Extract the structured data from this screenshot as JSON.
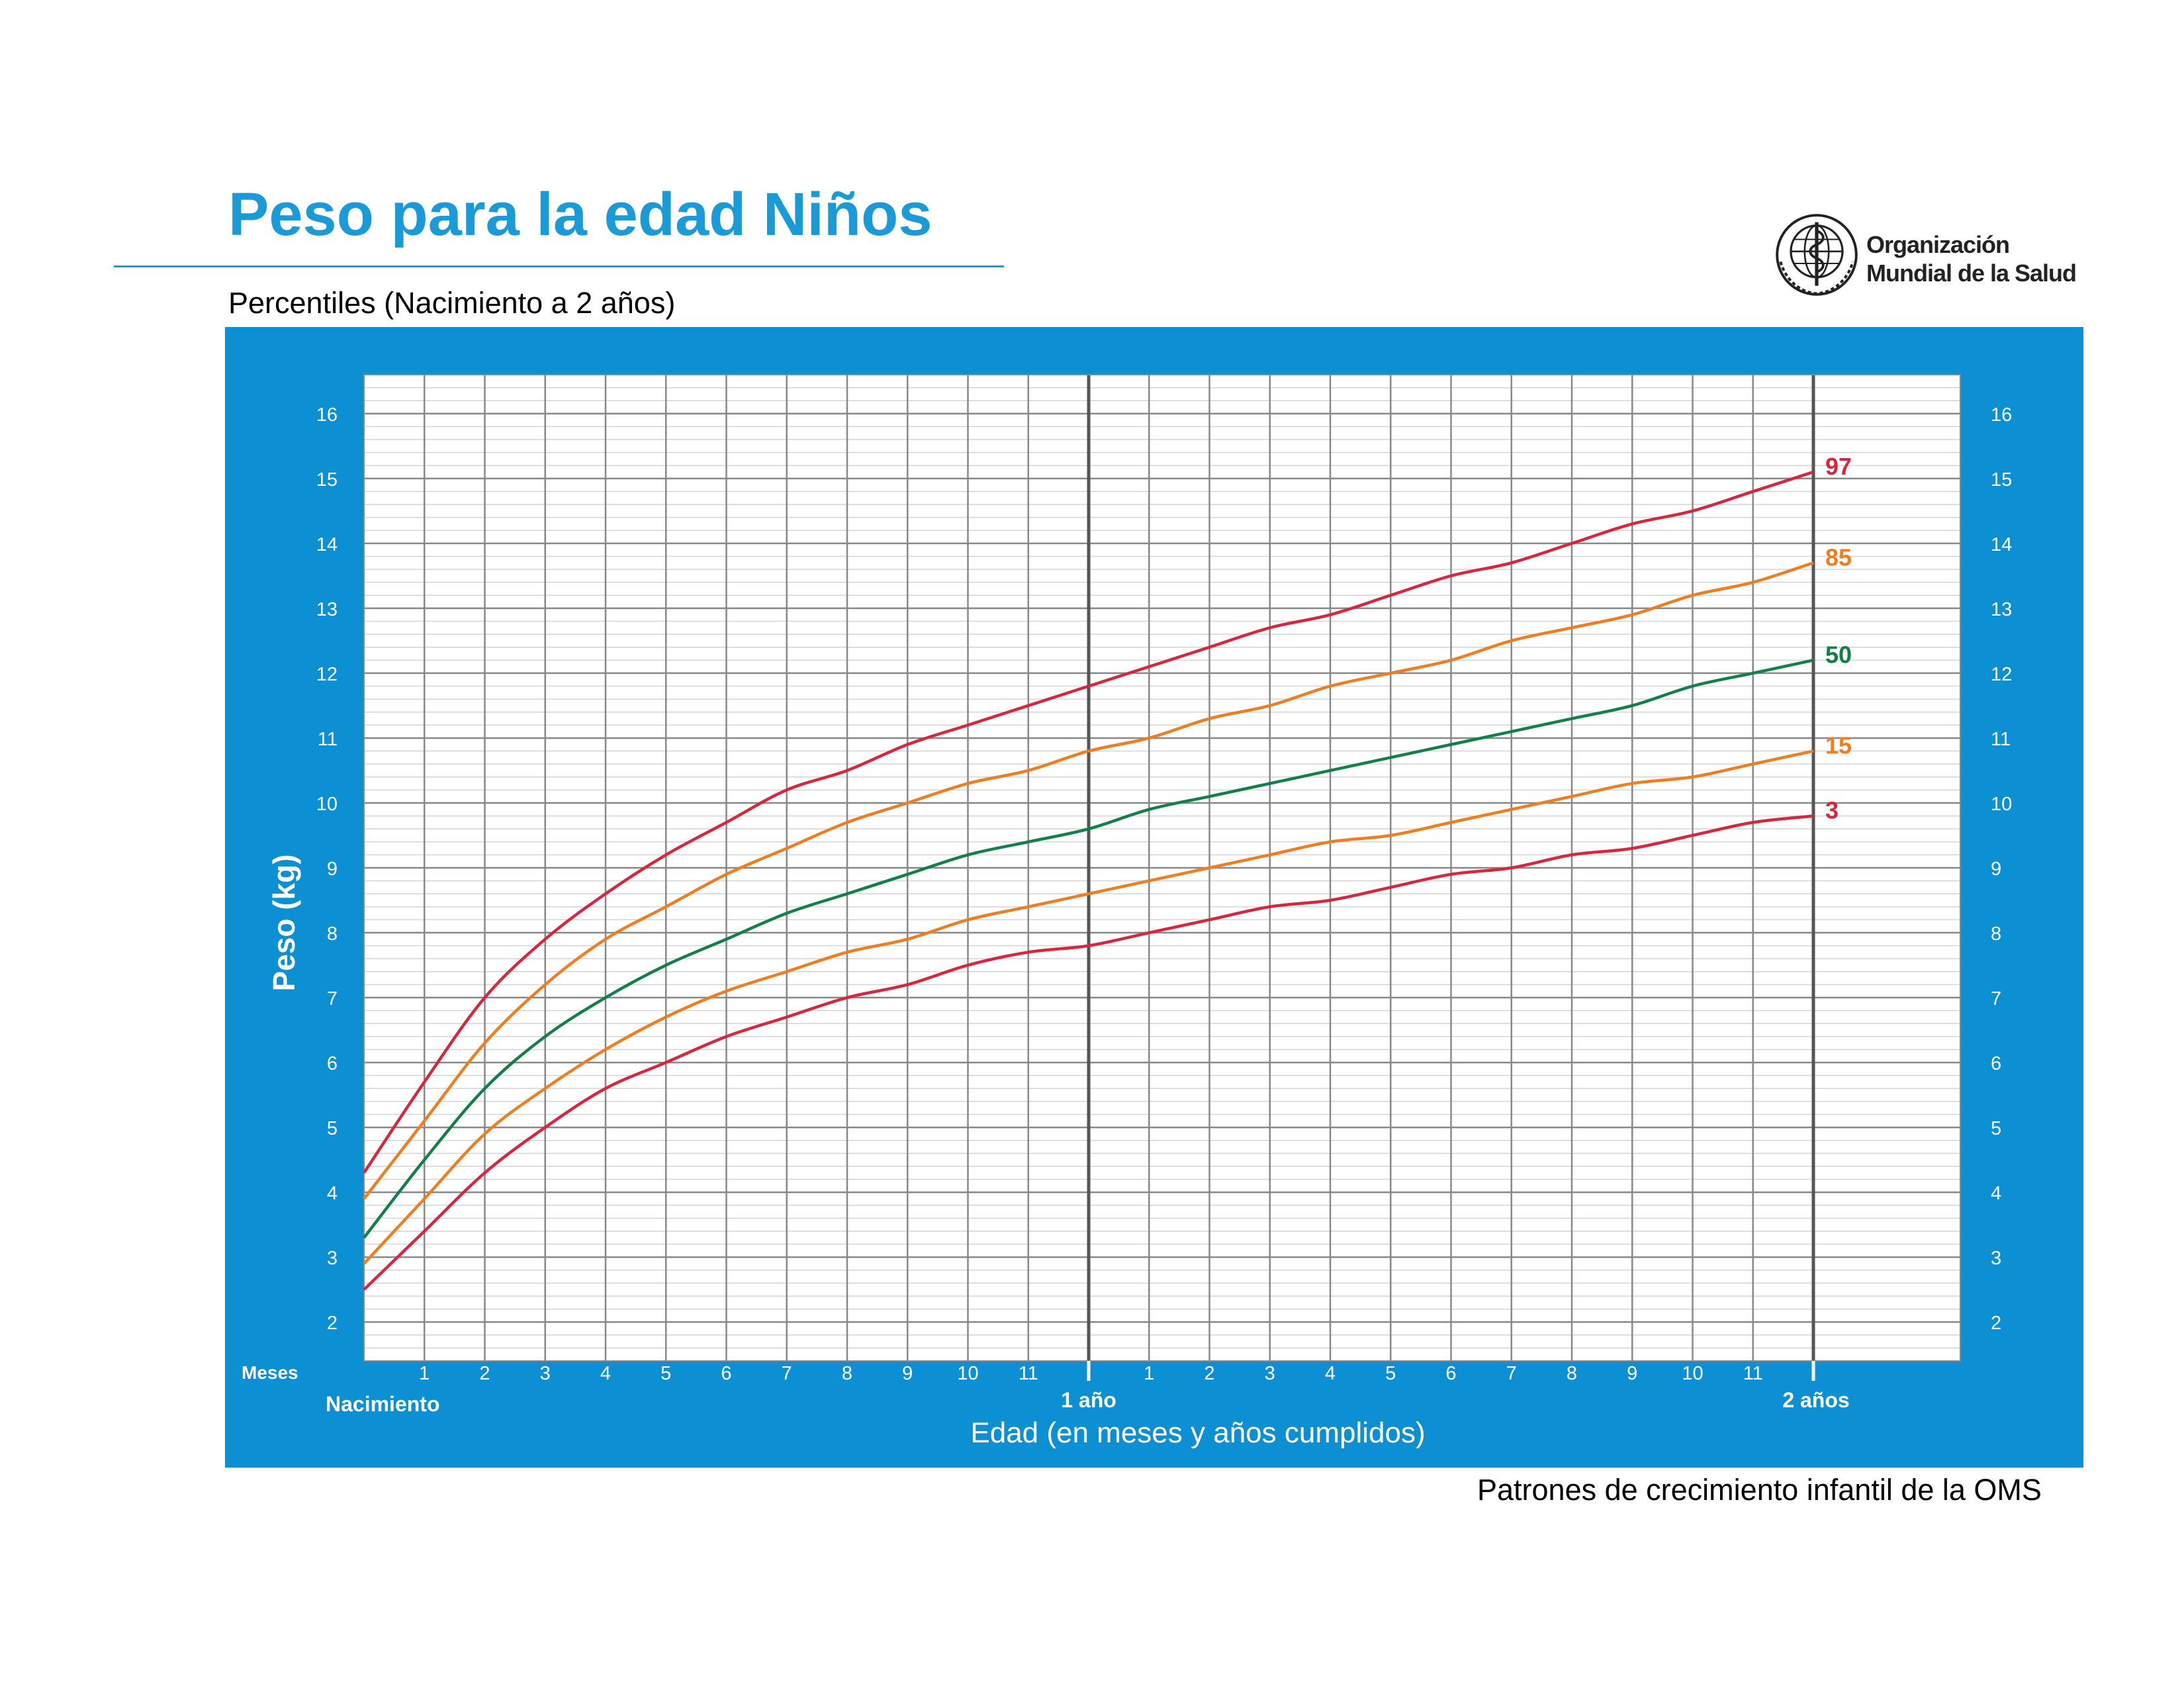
{
  "header": {
    "title": "Peso para la edad Niños",
    "subtitle": "Percentiles (Nacimiento a 2 años)"
  },
  "logo": {
    "icon": "who-emblem-icon",
    "line1": "Organización",
    "line2": "Mundial de la Salud"
  },
  "footer": {
    "source": "Patrones de crecimiento infantil de la OMS"
  },
  "colors": {
    "brand_blue": "#1a9ad6",
    "panel_blue": "#0d8fd4",
    "p97": "#d7263d",
    "p85": "#ef7d22",
    "p50": "#128048",
    "p15": "#ef7d22",
    "p3": "#d7263d"
  },
  "chart_data": {
    "type": "line",
    "ylabel": "Peso (kg)",
    "xlabel": "Edad (en meses y años cumplidos)",
    "x_axis": {
      "unit_label": "Meses",
      "range_months": [
        0,
        24
      ],
      "month_ticks_year1": [
        "1",
        "2",
        "3",
        "4",
        "5",
        "6",
        "7",
        "8",
        "9",
        "10",
        "11"
      ],
      "month_ticks_year2": [
        "1",
        "2",
        "3",
        "4",
        "5",
        "6",
        "7",
        "8",
        "9",
        "10",
        "11"
      ],
      "milestones": [
        {
          "month": 0,
          "label": "Nacimiento"
        },
        {
          "month": 12,
          "label": "1 año"
        },
        {
          "month": 24,
          "label": "2 años"
        }
      ]
    },
    "y_axis": {
      "range": [
        1.4,
        16.6
      ],
      "ticks": [
        2,
        3,
        4,
        5,
        6,
        7,
        8,
        9,
        10,
        11,
        12,
        13,
        14,
        15,
        16
      ],
      "minor_step": 0.2
    },
    "grid": true,
    "months": [
      0,
      1,
      2,
      3,
      4,
      5,
      6,
      7,
      8,
      9,
      10,
      11,
      12,
      13,
      14,
      15,
      16,
      17,
      18,
      19,
      20,
      21,
      22,
      23,
      24
    ],
    "series": [
      {
        "name": "97",
        "color_key": "p97",
        "values": [
          4.3,
          5.7,
          7.0,
          7.9,
          8.6,
          9.2,
          9.7,
          10.2,
          10.5,
          10.9,
          11.2,
          11.5,
          11.8,
          12.1,
          12.4,
          12.7,
          12.9,
          13.2,
          13.5,
          13.7,
          14.0,
          14.3,
          14.5,
          14.8,
          15.1
        ]
      },
      {
        "name": "85",
        "color_key": "p85",
        "values": [
          3.9,
          5.1,
          6.3,
          7.2,
          7.9,
          8.4,
          8.9,
          9.3,
          9.7,
          10.0,
          10.3,
          10.5,
          10.8,
          11.0,
          11.3,
          11.5,
          11.8,
          12.0,
          12.2,
          12.5,
          12.7,
          12.9,
          13.2,
          13.4,
          13.7
        ]
      },
      {
        "name": "50",
        "color_key": "p50",
        "values": [
          3.3,
          4.5,
          5.6,
          6.4,
          7.0,
          7.5,
          7.9,
          8.3,
          8.6,
          8.9,
          9.2,
          9.4,
          9.6,
          9.9,
          10.1,
          10.3,
          10.5,
          10.7,
          10.9,
          11.1,
          11.3,
          11.5,
          11.8,
          12.0,
          12.2
        ]
      },
      {
        "name": "15",
        "color_key": "p15",
        "values": [
          2.9,
          3.9,
          4.9,
          5.6,
          6.2,
          6.7,
          7.1,
          7.4,
          7.7,
          7.9,
          8.2,
          8.4,
          8.6,
          8.8,
          9.0,
          9.2,
          9.4,
          9.5,
          9.7,
          9.9,
          10.1,
          10.3,
          10.4,
          10.6,
          10.8
        ]
      },
      {
        "name": "3",
        "color_key": "p3",
        "values": [
          2.5,
          3.4,
          4.3,
          5.0,
          5.6,
          6.0,
          6.4,
          6.7,
          7.0,
          7.2,
          7.5,
          7.7,
          7.8,
          8.0,
          8.2,
          8.4,
          8.5,
          8.7,
          8.9,
          9.0,
          9.2,
          9.3,
          9.5,
          9.7,
          9.8
        ]
      }
    ]
  }
}
